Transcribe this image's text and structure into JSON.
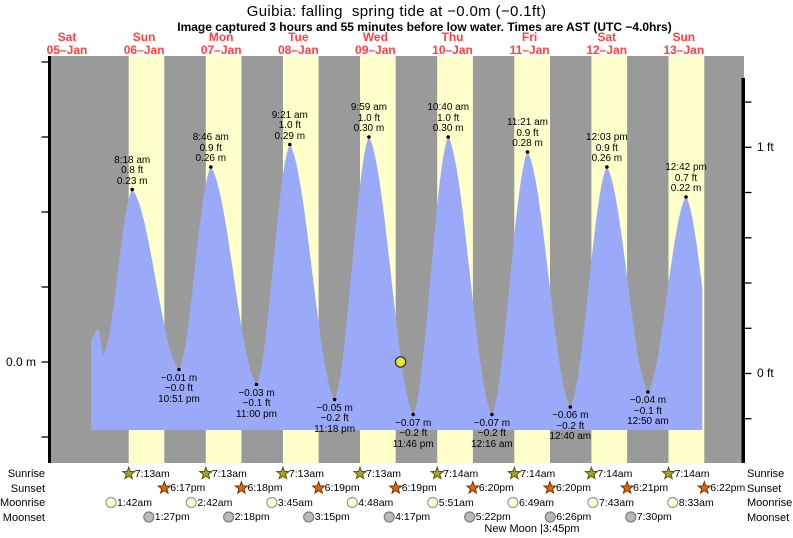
{
  "header": {
    "title": "Guibia: falling  spring tide at −0.0m (−0.1ft)",
    "subtitle": "Image captured 3 hours and 55 minutes before low water. Times are AST (UTC −4.0hrs)"
  },
  "colors": {
    "day_band": "#ffffcc",
    "night_bg": "#9a9a9a",
    "tide_fill": "#9aaaf8",
    "date_label": "#ff4040",
    "current_dot": "#e9e63b",
    "sunrise_star": "#aaa22b",
    "sunset_star": "#e2660b",
    "moonrise_circle": "#ffffd6",
    "moonset_circle": "#b9b9b9"
  },
  "days": [
    {
      "weekday": "Sat",
      "date": "05–Jan"
    },
    {
      "weekday": "Sun",
      "date": "06–Jan"
    },
    {
      "weekday": "Mon",
      "date": "07–Jan"
    },
    {
      "weekday": "Tue",
      "date": "08–Jan"
    },
    {
      "weekday": "Wed",
      "date": "09–Jan"
    },
    {
      "weekday": "Thu",
      "date": "10–Jan"
    },
    {
      "weekday": "Fri",
      "date": "11–Jan"
    },
    {
      "weekday": "Sat",
      "date": "12–Jan"
    },
    {
      "weekday": "Sun",
      "date": "13–Jan"
    }
  ],
  "axes": {
    "left_label": {
      "text": "0.0 m",
      "value_m": 0.0
    },
    "right_labels": [
      {
        "text": "1 ft",
        "value_ft": 1.0
      },
      {
        "text": "0 ft",
        "value_ft": 0.0
      }
    ],
    "left_ticks_m": [
      0.4,
      0.3,
      0.2,
      0.1,
      0.0,
      -0.1
    ],
    "right_ticks_ft": [
      1.2,
      1.0,
      0.8,
      0.6,
      0.4,
      0.2,
      0.0,
      -0.2
    ]
  },
  "chart_data": {
    "type": "area",
    "x_axis": "time over 9 days (Sat 05-Jan to Sun 13-Jan)",
    "y_units": [
      "m",
      "ft"
    ],
    "highs": [
      {
        "day": 1,
        "time": "8:18 am",
        "ft": "0.8 ft",
        "m": "0.23 m",
        "v_m": 0.23
      },
      {
        "day": 2,
        "time": "8:46 am",
        "ft": "0.9 ft",
        "m": "0.26 m",
        "v_m": 0.26
      },
      {
        "day": 3,
        "time": "9:21 am",
        "ft": "1.0 ft",
        "m": "0.29 m",
        "v_m": 0.29
      },
      {
        "day": 4,
        "time": "9:59 am",
        "ft": "1.0 ft",
        "m": "0.30 m",
        "v_m": 0.3
      },
      {
        "day": 5,
        "time": "10:40 am",
        "ft": "1.0 ft",
        "m": "0.30 m",
        "v_m": 0.3
      },
      {
        "day": 6,
        "time": "11:21 am",
        "ft": "0.9 ft",
        "m": "0.28 m",
        "v_m": 0.28
      },
      {
        "day": 7,
        "time": "12:03 pm",
        "ft": "0.9 ft",
        "m": "0.26 m",
        "v_m": 0.26
      },
      {
        "day": 8,
        "time": "12:42 pm",
        "ft": "0.7 ft",
        "m": "0.22 m",
        "v_m": 0.22
      }
    ],
    "lows": [
      {
        "day": 1,
        "time": "10:51 pm",
        "ft": "−0.0 ft",
        "m": "−0.01 m",
        "v_m": -0.01
      },
      {
        "day": 2,
        "time": "11:00 pm",
        "ft": "−0.1 ft",
        "m": "−0.03 m",
        "v_m": -0.03
      },
      {
        "day": 3,
        "time": "11:18 pm",
        "ft": "−0.2 ft",
        "m": "−0.05 m",
        "v_m": -0.05
      },
      {
        "day": 4,
        "time": "11:46 pm",
        "ft": "−0.2 ft",
        "m": "−0.07 m",
        "v_m": -0.07
      },
      {
        "day": 6,
        "time": "12:16 am",
        "ft": "−0.2 ft",
        "m": "−0.07 m",
        "v_m": -0.07
      },
      {
        "day": 7,
        "time": "12:40 am",
        "ft": "−0.2 ft",
        "m": "−0.06 m",
        "v_m": -0.06
      },
      {
        "day": 8,
        "time": "12:50 am",
        "ft": "−0.1 ft",
        "m": "−0.04 m",
        "v_m": -0.04
      }
    ],
    "unannotated_curve_points": [
      {
        "day": 0,
        "time": "7:30 pm",
        "v_m": 0.03,
        "role": "curve-start"
      },
      {
        "day": 0,
        "time": "9:40 pm",
        "v_m": 0.044,
        "role": "minor-high"
      },
      {
        "day": 0,
        "time": "11:20 pm",
        "v_m": 0.01,
        "role": "minor-low"
      },
      {
        "day": 8,
        "time": "11:00 pm",
        "v_m": -0.03,
        "role": "curve-end-phantom"
      }
    ],
    "curve_end": {
      "day": 8,
      "time": "5:45 pm"
    },
    "current_time_marker": {
      "day": 4,
      "time": "7:51 pm",
      "v_m": 0.0
    }
  },
  "astro": {
    "row_labels": [
      "Sunrise",
      "Sunset",
      "Moonrise",
      "Moonset"
    ],
    "sunrise": [
      {
        "day": 1,
        "time": "7:13am"
      },
      {
        "day": 2,
        "time": "7:13am"
      },
      {
        "day": 3,
        "time": "7:13am"
      },
      {
        "day": 4,
        "time": "7:13am"
      },
      {
        "day": 5,
        "time": "7:14am"
      },
      {
        "day": 6,
        "time": "7:14am"
      },
      {
        "day": 7,
        "time": "7:14am"
      },
      {
        "day": 8,
        "time": "7:14am"
      }
    ],
    "sunset": [
      {
        "day": 1,
        "time": "6:17pm"
      },
      {
        "day": 2,
        "time": "6:18pm"
      },
      {
        "day": 3,
        "time": "6:19pm"
      },
      {
        "day": 4,
        "time": "6:19pm"
      },
      {
        "day": 5,
        "time": "6:20pm"
      },
      {
        "day": 6,
        "time": "6:20pm"
      },
      {
        "day": 7,
        "time": "6:21pm"
      },
      {
        "day": 8,
        "time": "6:22pm"
      }
    ],
    "moonrise": [
      {
        "day": 1,
        "time": "1:42am"
      },
      {
        "day": 2,
        "time": "2:42am"
      },
      {
        "day": 3,
        "time": "3:45am"
      },
      {
        "day": 4,
        "time": "4:48am"
      },
      {
        "day": 5,
        "time": "5:51am"
      },
      {
        "day": 6,
        "time": "6:49am"
      },
      {
        "day": 7,
        "time": "7:43am"
      },
      {
        "day": 8,
        "time": "8:33am"
      }
    ],
    "moonset": [
      {
        "day": 1,
        "time": "1:27pm"
      },
      {
        "day": 2,
        "time": "2:18pm"
      },
      {
        "day": 3,
        "time": "3:15pm"
      },
      {
        "day": 4,
        "time": "4:17pm"
      },
      {
        "day": 5,
        "time": "5:22pm"
      },
      {
        "day": 6,
        "time": "6:26pm"
      },
      {
        "day": 7,
        "time": "7:30pm"
      }
    ],
    "new_moon": {
      "label": "New Moon",
      "time": "3:45pm"
    }
  }
}
